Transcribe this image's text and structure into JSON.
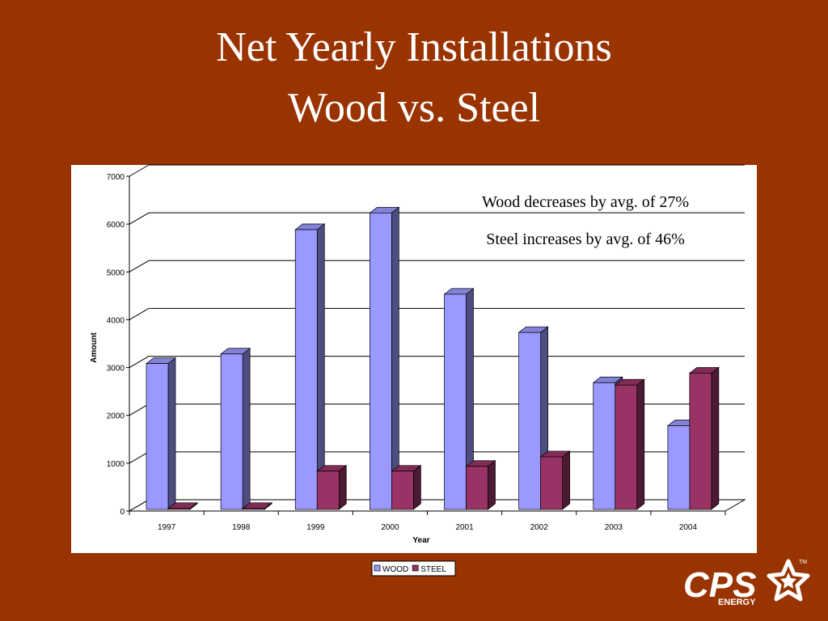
{
  "chart_data": {
    "type": "bar3d",
    "title": "Net Yearly Installations",
    "subtitle": "Wood vs. Steel",
    "annotations": [
      "Wood decreases by avg. of 27%",
      "Steel increases by avg. of 46%"
    ],
    "x_label": "Year",
    "y_label": "Amount",
    "categories": [
      "1997",
      "1998",
      "1999",
      "2000",
      "2001",
      "2002",
      "2003",
      "2004"
    ],
    "series": [
      {
        "name": "WOOD",
        "color": "#9999ff",
        "values": [
          3050,
          3250,
          5850,
          6200,
          4500,
          3700,
          2650,
          1750
        ]
      },
      {
        "name": "STEEL",
        "color": "#993366",
        "values": [
          20,
          20,
          800,
          800,
          900,
          1100,
          2600,
          2850
        ]
      }
    ],
    "ylim": [
      0,
      7000
    ],
    "yticks": [
      0,
      1000,
      2000,
      3000,
      4000,
      5000,
      6000,
      7000
    ],
    "grid": true
  },
  "logo": {
    "text": "CPS",
    "subtext": "ENERGY",
    "mark": "TM"
  }
}
